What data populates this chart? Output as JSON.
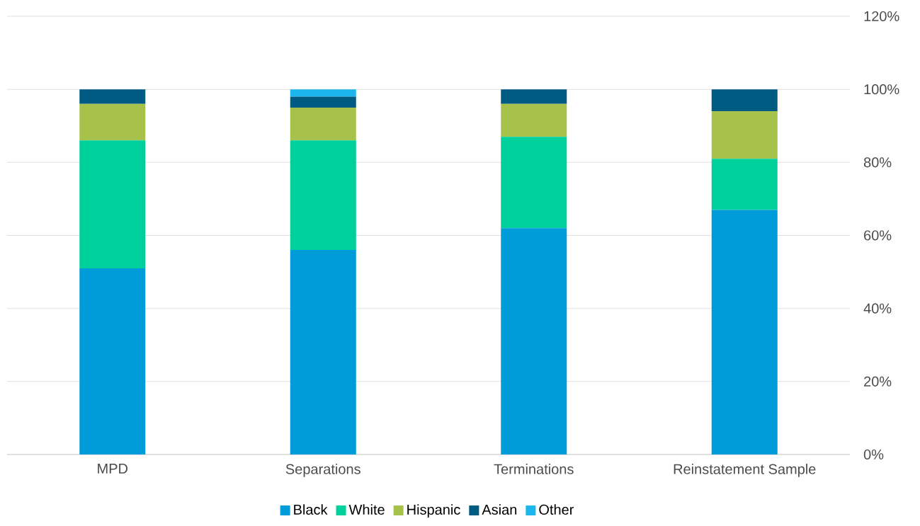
{
  "chart_data": {
    "type": "bar",
    "stacked": true,
    "categories": [
      "MPD",
      "Separations",
      "Terminations",
      "Reinstatement Sample"
    ],
    "series": [
      {
        "name": "Black",
        "color": "#009bd9",
        "values": [
          51,
          56,
          62,
          67
        ]
      },
      {
        "name": "White",
        "color": "#00d09b",
        "values": [
          35,
          30,
          25,
          14
        ]
      },
      {
        "name": "Hispanic",
        "color": "#a6c24b",
        "values": [
          10,
          9,
          9,
          13
        ]
      },
      {
        "name": "Asian",
        "color": "#005b82",
        "values": [
          4,
          3,
          4,
          6
        ]
      },
      {
        "name": "Other",
        "color": "#1cb6ec",
        "values": [
          0,
          2,
          0,
          0
        ]
      }
    ],
    "ylim": [
      0,
      120
    ],
    "yticks": [
      {
        "value": 0,
        "label": "0%"
      },
      {
        "value": 20,
        "label": "20%"
      },
      {
        "value": 40,
        "label": "40%"
      },
      {
        "value": 60,
        "label": "60%"
      },
      {
        "value": 80,
        "label": "80%"
      },
      {
        "value": 100,
        "label": "100%"
      },
      {
        "value": 120,
        "label": "120%"
      }
    ],
    "grid": "y",
    "legend": "bottom"
  }
}
